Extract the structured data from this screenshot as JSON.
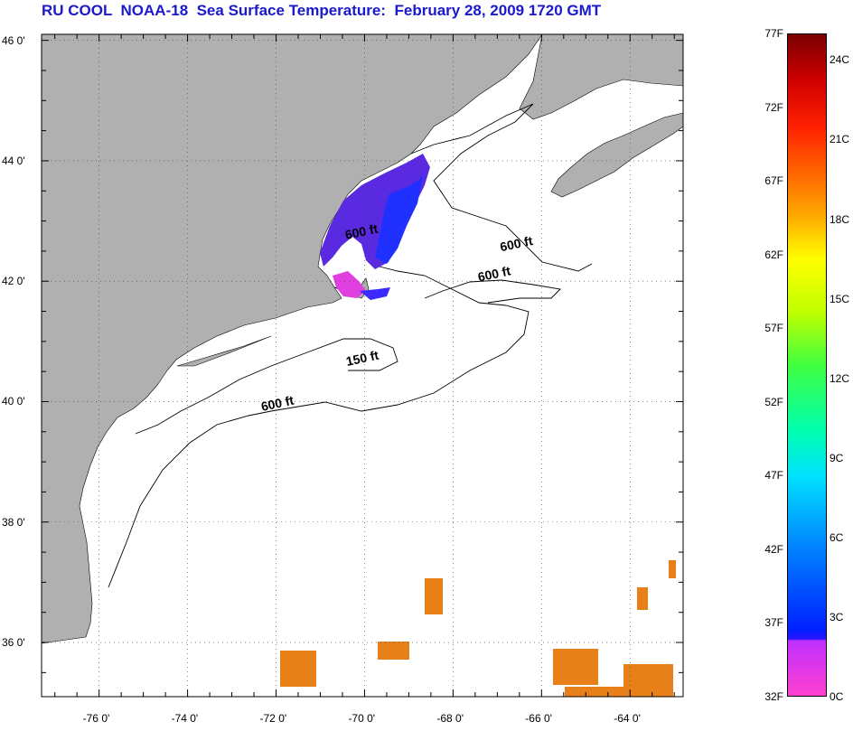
{
  "title": "RU COOL  NOAA-18  Sea Surface Temperature:  February 28, 2009 1720 GMT",
  "map": {
    "lat_labels": [
      "46 0'",
      "44 0'",
      "42 0'",
      "40 0'",
      "38 0'",
      "36 0'"
    ],
    "lat_values": [
      46,
      44,
      42,
      40,
      38,
      36
    ],
    "lon_labels": [
      "-76 0'",
      "-74 0'",
      "-72 0'",
      "-70 0'",
      "-68 0'",
      "-66 0'",
      "-64 0'"
    ],
    "lon_values": [
      -76,
      -74,
      -72,
      -70,
      -68,
      -66,
      -64
    ],
    "lon_range": [
      -77.3,
      -62.8
    ],
    "lat_range": [
      35.1,
      46.1
    ],
    "grid": "dotted",
    "land_color": "#b0b0b0",
    "water_color": "#ffffff",
    "contour_labels": [
      {
        "text": "600 ft",
        "lon": -70.05,
        "lat": 42.75
      },
      {
        "text": "600 ft",
        "lon": -66.55,
        "lat": 42.55
      },
      {
        "text": "600 ft",
        "lon": -67.05,
        "lat": 42.05
      },
      {
        "text": "150 ft",
        "lon": -70.03,
        "lat": 40.65
      },
      {
        "text": "600 ft",
        "lon": -71.95,
        "lat": 39.9
      }
    ]
  },
  "colorbar": {
    "fahrenheit": [
      "77F",
      "72F",
      "67F",
      "62F",
      "57F",
      "52F",
      "47F",
      "42F",
      "37F",
      "32F"
    ],
    "celsius": [
      "24C",
      "21C",
      "18C",
      "15C",
      "12C",
      "9C",
      "6C",
      "3C",
      "0C"
    ],
    "min_f": 32,
    "max_f": 77
  }
}
